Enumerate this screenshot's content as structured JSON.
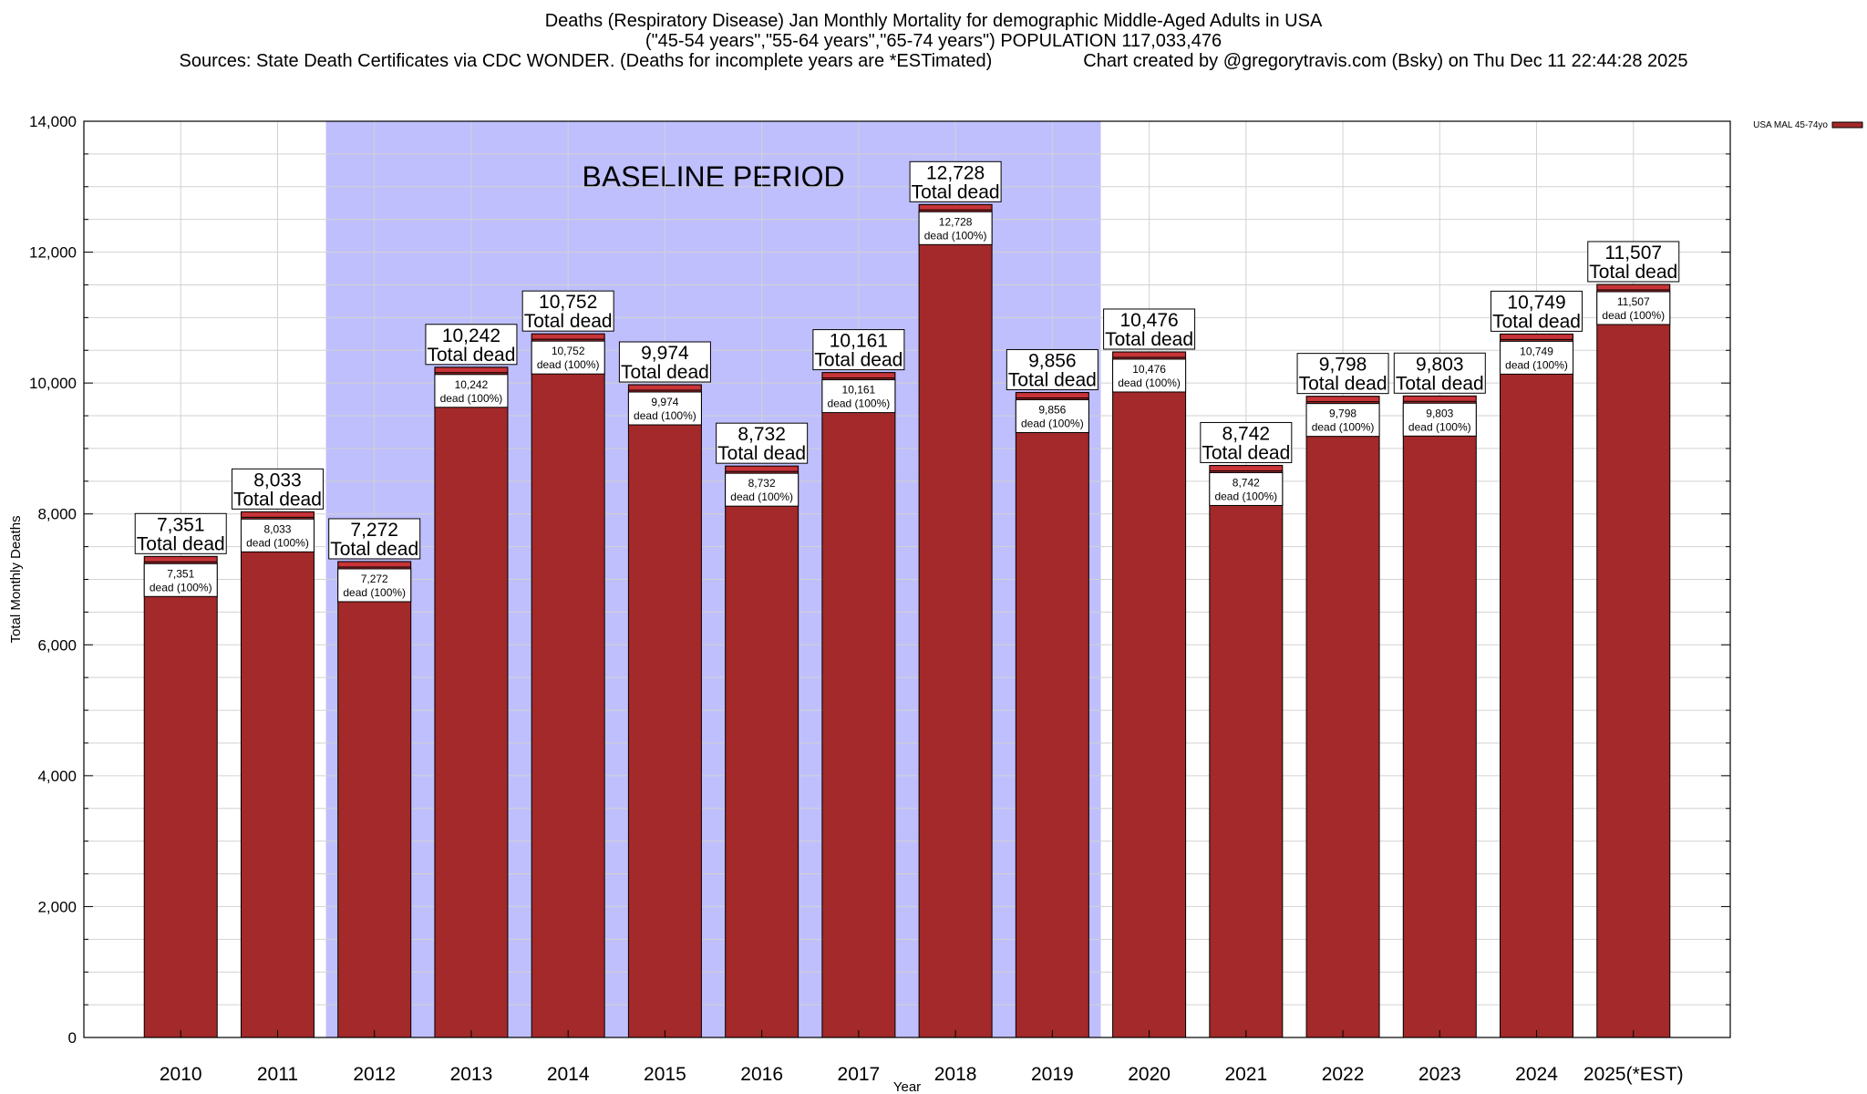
{
  "chart_data": {
    "type": "bar",
    "title": "Deaths (Respiratory Disease) Jan Monthly Mortality for demographic Middle-Aged Adults in USA",
    "subtitle": "(\"45-54 years\",\"55-64 years\",\"65-74 years\") POPULATION 117,033,476",
    "sources_line": "Sources: State Death Certificates via CDC WONDER. (Deaths for incomplete years are *ESTimated)",
    "credit_line": "Chart created by @gregorytravis.com (Bsky) on Thu Dec 11 22:44:28 2025",
    "xlabel": "Year",
    "ylabel": "Total Monthly Deaths",
    "ylim": [
      0,
      14000
    ],
    "y_ticks": [
      {
        "value": 0,
        "label": "0"
      },
      {
        "value": 2000,
        "label": "2,000"
      },
      {
        "value": 4000,
        "label": "4,000"
      },
      {
        "value": 6000,
        "label": "6,000"
      },
      {
        "value": 8000,
        "label": "8,000"
      },
      {
        "value": 10000,
        "label": "10,000"
      },
      {
        "value": 12000,
        "label": "12,000"
      },
      {
        "value": 14000,
        "label": "14,000"
      }
    ],
    "y_minor_step": 500,
    "grid": true,
    "legend": {
      "placement": "top-right",
      "label": "USA MAL 45-74yo"
    },
    "categories": [
      "2010",
      "2011",
      "2012",
      "2013",
      "2014",
      "2015",
      "2016",
      "2017",
      "2018",
      "2019",
      "2020",
      "2021",
      "2022",
      "2023",
      "2024",
      "2025(*EST)"
    ],
    "values": [
      7351,
      8033,
      7272,
      10242,
      10752,
      9974,
      8732,
      10161,
      12728,
      9856,
      10476,
      8742,
      9798,
      9803,
      10749,
      11507
    ],
    "value_labels": [
      "7,351",
      "8,033",
      "7,272",
      "10,242",
      "10,752",
      "9,974",
      "8,732",
      "10,161",
      "12,728",
      "9,856",
      "10,476",
      "8,742",
      "9,798",
      "9,803",
      "10,749",
      "11,507"
    ],
    "total_label": "Total dead",
    "inner_label_suffix": "dead (100%)",
    "baseline_period": {
      "label": "BASELINE PERIOD",
      "start": "2012",
      "end": "2019"
    },
    "colors": {
      "bar": "#a3292a",
      "bar_cap": "#c83438",
      "baseline": "#bfbffd",
      "grid": "#d2d2d2"
    }
  }
}
